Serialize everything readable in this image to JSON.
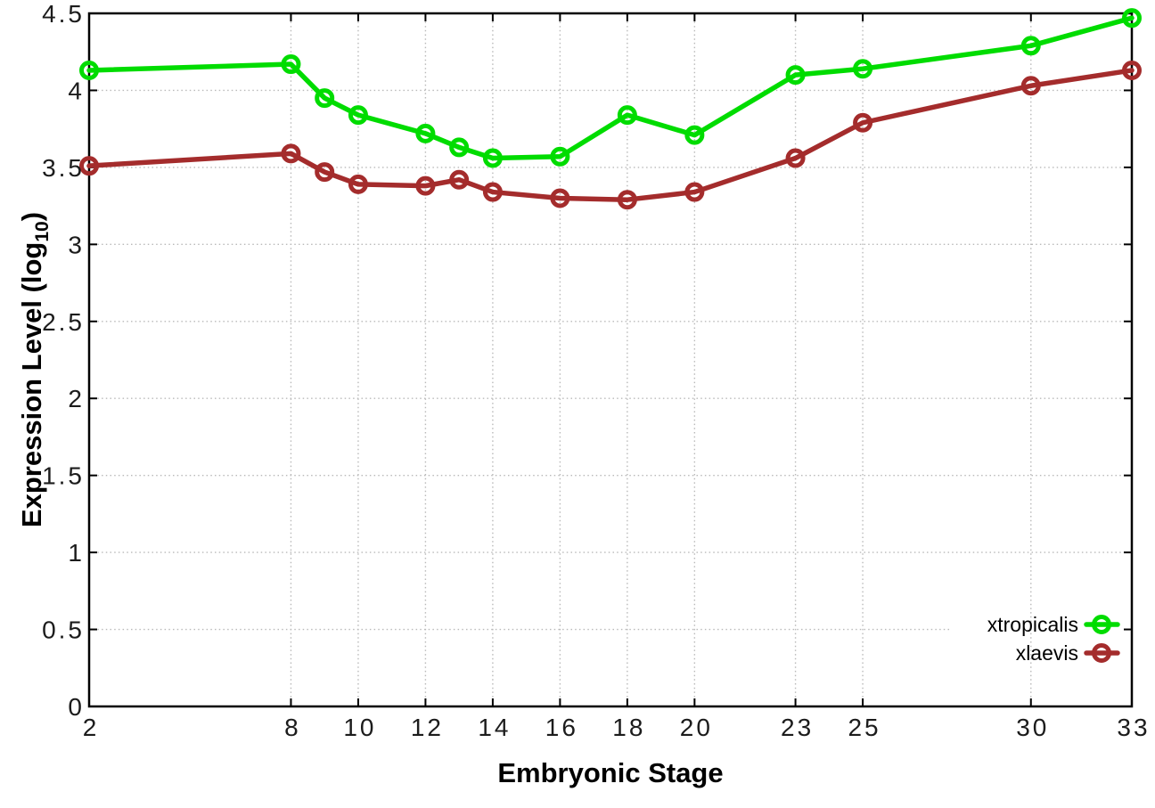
{
  "labels": {
    "ylabel_main": "Expression Level (log",
    "ylabel_sub": "10",
    "ylabel_close": ")"
  },
  "chart_data": {
    "type": "line",
    "title": "",
    "xlabel": "Embryonic Stage",
    "ylabel": "Expression Level (log10)",
    "xlim": [
      2,
      33
    ],
    "ylim": [
      0,
      4.5
    ],
    "grid": true,
    "legend_position": "bottom-right",
    "background": "#ffffff",
    "x": [
      2,
      8,
      9,
      10,
      12,
      13,
      14,
      16,
      18,
      20,
      23,
      25,
      30,
      33
    ],
    "xticks": [
      2,
      8,
      10,
      12,
      14,
      16,
      18,
      20,
      23,
      25,
      30,
      33
    ],
    "xtick_labels": [
      "2",
      "8",
      "10",
      "12",
      "14",
      "16",
      "18",
      "20",
      "23",
      "25",
      "30",
      "33"
    ],
    "yticks": [
      0,
      0.5,
      1,
      1.5,
      2,
      2.5,
      3,
      3.5,
      4,
      4.5
    ],
    "ytick_labels": [
      "0",
      "0.5",
      "1",
      "1.5",
      "2",
      "2.5",
      "3",
      "3.5",
      "4",
      "4.5"
    ],
    "series": [
      {
        "name": "xtropicalis",
        "color": "#00dc00",
        "marker": "open-circle",
        "values": [
          4.13,
          4.17,
          3.95,
          3.84,
          3.72,
          3.63,
          3.56,
          3.57,
          3.84,
          3.71,
          4.1,
          4.14,
          4.29,
          4.47
        ]
      },
      {
        "name": "xlaevis",
        "color": "#a42c2c",
        "marker": "open-circle",
        "values": [
          3.51,
          3.59,
          3.47,
          3.39,
          3.38,
          3.42,
          3.34,
          3.3,
          3.29,
          3.34,
          3.56,
          3.79,
          4.03,
          4.13
        ]
      }
    ],
    "colors": {
      "grid": "#b9b9b9",
      "axis": "#000000",
      "text": "#1c1c1c"
    }
  }
}
